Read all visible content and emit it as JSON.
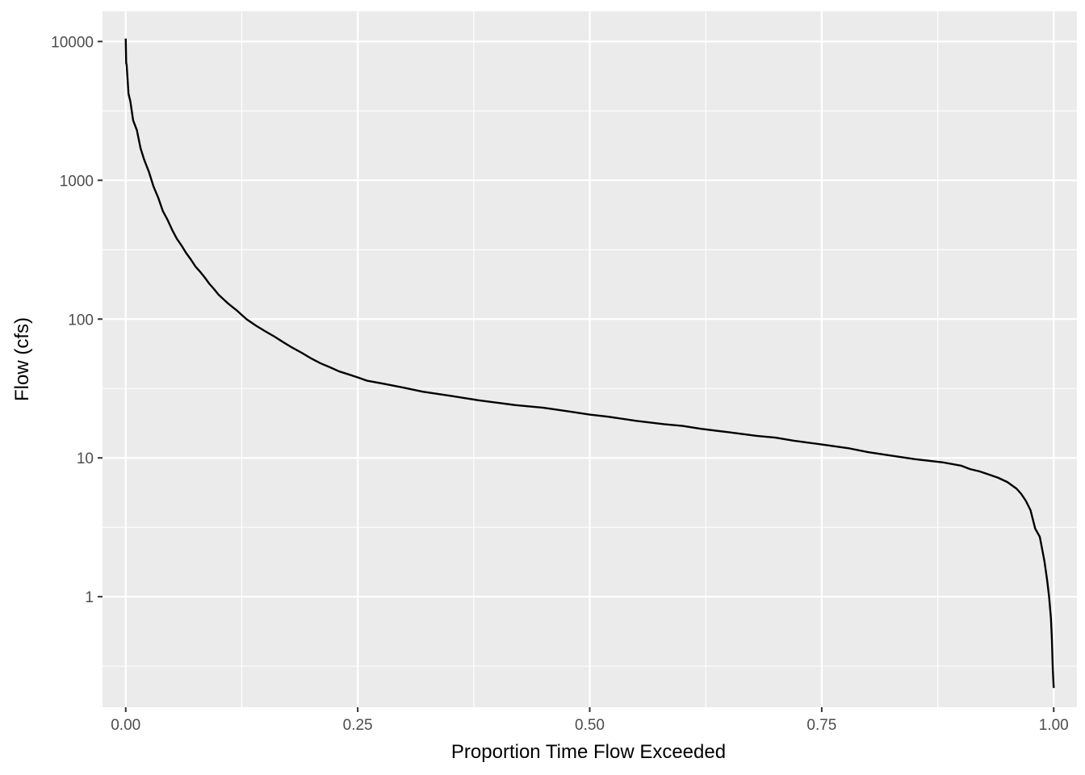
{
  "chart_data": {
    "type": "line",
    "title": "",
    "xlabel": "Proportion Time Flow Exceeded",
    "ylabel": "Flow (cfs)",
    "xlim": [
      -0.025,
      1.025
    ],
    "ylim": [
      0.16,
      16500
    ],
    "y_scale": "log10",
    "x_ticks": [
      0,
      0.25,
      0.5,
      0.75,
      1
    ],
    "x_tick_labels": [
      "0.00",
      "0.25",
      "0.50",
      "0.75",
      "1.00"
    ],
    "y_ticks": [
      1,
      10,
      100,
      1000,
      10000
    ],
    "y_tick_labels": [
      "1",
      "10",
      "100",
      "1000",
      "10000"
    ],
    "grid": true,
    "legend": "none",
    "colors": {
      "panel": "#ebebeb",
      "grid": "#ffffff",
      "line": "#000000",
      "text": "#4d4d4d"
    },
    "series": [
      {
        "x": [
          0,
          0.0005,
          0.001,
          0.003,
          0.005,
          0.008,
          0.012,
          0.016,
          0.02,
          0.025,
          0.03,
          0.035,
          0.04,
          0.045,
          0.05,
          0.055,
          0.06,
          0.065,
          0.07,
          0.075,
          0.08,
          0.085,
          0.09,
          0.095,
          0.1,
          0.11,
          0.12,
          0.13,
          0.14,
          0.15,
          0.16,
          0.17,
          0.18,
          0.19,
          0.2,
          0.21,
          0.22,
          0.23,
          0.24,
          0.25,
          0.26,
          0.27,
          0.28,
          0.3,
          0.32,
          0.35,
          0.38,
          0.4,
          0.42,
          0.45,
          0.48,
          0.5,
          0.52,
          0.55,
          0.58,
          0.6,
          0.62,
          0.65,
          0.68,
          0.7,
          0.72,
          0.75,
          0.78,
          0.8,
          0.82,
          0.85,
          0.88,
          0.9,
          0.91,
          0.92,
          0.93,
          0.94,
          0.95,
          0.96,
          0.965,
          0.97,
          0.975,
          0.98,
          0.985,
          0.99,
          0.993,
          0.995,
          0.997,
          0.998,
          0.999,
          1.0
        ],
        "y": [
          10500,
          7000,
          6800,
          4200,
          3700,
          2700,
          2300,
          1700,
          1400,
          1150,
          900,
          750,
          600,
          520,
          440,
          380,
          340,
          300,
          270,
          240,
          220,
          200,
          180,
          165,
          150,
          130,
          115,
          100,
          90,
          82,
          75,
          68,
          62,
          57,
          52,
          48,
          45,
          42,
          40,
          38,
          36,
          35,
          34,
          32,
          30,
          28,
          26,
          25,
          24,
          23,
          21.5,
          20.5,
          19.8,
          18.5,
          17.5,
          17,
          16.2,
          15.3,
          14.4,
          14,
          13.3,
          12.5,
          11.7,
          11,
          10.5,
          9.8,
          9.3,
          8.8,
          8.3,
          8.0,
          7.6,
          7.2,
          6.7,
          6.0,
          5.5,
          4.9,
          4.2,
          3.1,
          2.7,
          1.8,
          1.3,
          1.0,
          0.7,
          0.5,
          0.3,
          0.22
        ]
      }
    ]
  }
}
